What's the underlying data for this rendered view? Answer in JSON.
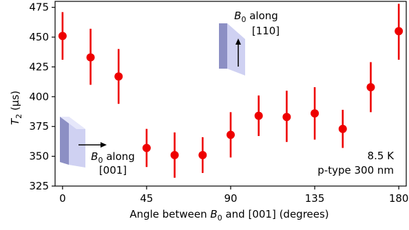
{
  "chart_data": {
    "type": "scatter",
    "title": "",
    "xlabel": {
      "prefix": "Angle between ",
      "b": "B",
      "sub": "0",
      "suffix": " and [001] (degrees)"
    },
    "ylabel": {
      "t": "T",
      "sub": "2",
      "unit": " (µs)"
    },
    "xlim": [
      -4,
      184
    ],
    "ylim": [
      325,
      480
    ],
    "xticks": [
      0,
      45,
      90,
      135,
      180
    ],
    "yticks": [
      325,
      350,
      375,
      400,
      425,
      450,
      475
    ],
    "grid": false,
    "series": [
      {
        "marker_color": "#ee0000",
        "points": [
          {
            "x": 0,
            "y": 451,
            "err_low": 20,
            "err_high": 20
          },
          {
            "x": 15,
            "y": 433,
            "err_low": 23,
            "err_high": 24
          },
          {
            "x": 30,
            "y": 417,
            "err_low": 23,
            "err_high": 23
          },
          {
            "x": 45,
            "y": 357,
            "err_low": 16,
            "err_high": 16
          },
          {
            "x": 60,
            "y": 351,
            "err_low": 19,
            "err_high": 19
          },
          {
            "x": 75,
            "y": 351,
            "err_low": 15,
            "err_high": 15
          },
          {
            "x": 90,
            "y": 368,
            "err_low": 19,
            "err_high": 19
          },
          {
            "x": 105,
            "y": 384,
            "err_low": 17,
            "err_high": 17
          },
          {
            "x": 120,
            "y": 383,
            "err_low": 21,
            "err_high": 22
          },
          {
            "x": 135,
            "y": 386,
            "err_low": 22,
            "err_high": 22
          },
          {
            "x": 150,
            "y": 373,
            "err_low": 16,
            "err_high": 16
          },
          {
            "x": 165,
            "y": 408,
            "err_low": 21,
            "err_high": 21
          },
          {
            "x": 180,
            "y": 455,
            "err_low": 24,
            "err_high": 23
          }
        ]
      }
    ],
    "annotations": {
      "top_line1_b": "B",
      "top_line1_sub": "0",
      "top_line1_rest": " along",
      "top_line2": "[110]",
      "left_line1_b": "B",
      "left_line1_sub": "0",
      "left_line1_rest": " along",
      "left_line2": "[001]",
      "conditions_line1": "8.5 K",
      "conditions_line2": "p-type 300 nm"
    },
    "colors": {
      "slab_front": "#8c8fc4",
      "slab_side": "#cfd1f2",
      "slab_top": "#e6e7fa"
    }
  }
}
